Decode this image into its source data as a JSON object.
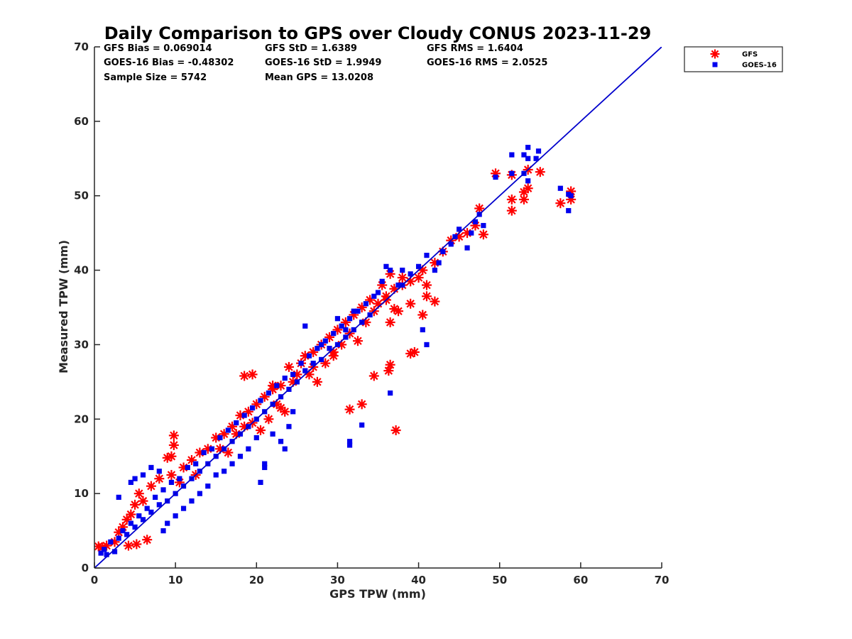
{
  "chart_data": {
    "type": "scatter",
    "title": "Daily Comparison to GPS over Cloudy CONUS 2023-11-29",
    "xlabel": "GPS TPW (mm)",
    "ylabel": "Measured TPW (mm)",
    "xlim": [
      0,
      70
    ],
    "ylim": [
      0,
      70
    ],
    "xticks": [
      "0",
      "10",
      "20",
      "30",
      "40",
      "50",
      "60",
      "70"
    ],
    "yticks": [
      "0",
      "10",
      "20",
      "30",
      "40",
      "50",
      "60",
      "70"
    ],
    "grid": false,
    "legend_position": "outside-top-right",
    "stats": [
      [
        "GFS Bias = 0.069014",
        "GFS StD = 1.6389",
        "GFS RMS = 1.6404"
      ],
      [
        "GOES-16 Bias = -0.48302",
        "GOES-16 StD = 1.9949",
        "GOES-16 RMS = 2.0525"
      ],
      [
        "Sample Size = 5742",
        "Mean GPS = 13.0208",
        ""
      ]
    ],
    "reference_line": {
      "x": [
        0,
        70
      ],
      "y": [
        0,
        70
      ],
      "color": "#0000cc"
    },
    "series": [
      {
        "name": "GFS",
        "marker": "asterisk",
        "color": "#ff0000",
        "points": [
          [
            0.5,
            2.9
          ],
          [
            1.0,
            2.8
          ],
          [
            1.5,
            3.0
          ],
          [
            2.5,
            3.5
          ],
          [
            3.0,
            4.8
          ],
          [
            3.5,
            5.5
          ],
          [
            4.0,
            6.5
          ],
          [
            4.5,
            7.2
          ],
          [
            4.2,
            3.0
          ],
          [
            5.0,
            8.5
          ],
          [
            5.2,
            3.2
          ],
          [
            5.5,
            10.0
          ],
          [
            6.0,
            9.0
          ],
          [
            6.5,
            3.8
          ],
          [
            7.0,
            11.0
          ],
          [
            8.0,
            12.0
          ],
          [
            9.0,
            14.8
          ],
          [
            9.5,
            12.5
          ],
          [
            9.8,
            17.8
          ],
          [
            9.8,
            16.5
          ],
          [
            9.5,
            15.0
          ],
          [
            10.5,
            11.5
          ],
          [
            11.0,
            13.5
          ],
          [
            12.0,
            14.5
          ],
          [
            12.5,
            12.5
          ],
          [
            13.0,
            15.5
          ],
          [
            14.0,
            16.0
          ],
          [
            15.0,
            17.5
          ],
          [
            15.5,
            16.0
          ],
          [
            16.0,
            18.0
          ],
          [
            16.5,
            15.5
          ],
          [
            17.0,
            19.0
          ],
          [
            17.5,
            18.0
          ],
          [
            18.0,
            20.5
          ],
          [
            18.5,
            19.0
          ],
          [
            19.0,
            21.0
          ],
          [
            19.5,
            19.5
          ],
          [
            20.0,
            22.0
          ],
          [
            20.5,
            18.5
          ],
          [
            21.0,
            23.0
          ],
          [
            21.5,
            20.0
          ],
          [
            22.0,
            24.0
          ],
          [
            22.5,
            22.0
          ],
          [
            23.0,
            24.5
          ],
          [
            23.5,
            21.0
          ],
          [
            24.0,
            27.0
          ],
          [
            24.5,
            25.0
          ],
          [
            25.0,
            26.0
          ],
          [
            25.5,
            27.5
          ],
          [
            26.0,
            28.5
          ],
          [
            26.5,
            26.0
          ],
          [
            27.0,
            29.0
          ],
          [
            27.5,
            25.0
          ],
          [
            28.0,
            30.0
          ],
          [
            28.5,
            27.5
          ],
          [
            29.0,
            31.0
          ],
          [
            29.5,
            28.5
          ],
          [
            30.0,
            32.0
          ],
          [
            30.5,
            30.0
          ],
          [
            31.0,
            33.0
          ],
          [
            31.5,
            31.5
          ],
          [
            32.0,
            34.0
          ],
          [
            32.5,
            30.5
          ],
          [
            33.0,
            35.0
          ],
          [
            33.5,
            33.0
          ],
          [
            34.0,
            36.0
          ],
          [
            34.5,
            34.5
          ],
          [
            35.0,
            35.5
          ],
          [
            35.5,
            38.0
          ],
          [
            36.0,
            36.5
          ],
          [
            36.5,
            33.0
          ],
          [
            37.0,
            37.5
          ],
          [
            38.0,
            39.0
          ],
          [
            39.0,
            38.5
          ],
          [
            40.0,
            39.0
          ],
          [
            40.5,
            40.0
          ],
          [
            41.0,
            38.0
          ],
          [
            42.0,
            41.0
          ],
          [
            43.0,
            42.5
          ],
          [
            44.0,
            44.0
          ],
          [
            45.0,
            44.5
          ],
          [
            46.0,
            45.0
          ],
          [
            47.0,
            46.0
          ],
          [
            47.5,
            48.3
          ],
          [
            48.0,
            44.8
          ],
          [
            18.5,
            25.8
          ],
          [
            19.5,
            26.0
          ],
          [
            22.0,
            24.5
          ],
          [
            23.0,
            21.5
          ],
          [
            27.0,
            27.0
          ],
          [
            29.5,
            29.0
          ],
          [
            31.5,
            21.3
          ],
          [
            33.0,
            22.0
          ],
          [
            34.5,
            25.8
          ],
          [
            36.5,
            27.3
          ],
          [
            36.3,
            26.5
          ],
          [
            37.2,
            18.5
          ],
          [
            37.0,
            34.8
          ],
          [
            37.5,
            34.5
          ],
          [
            39.0,
            35.5
          ],
          [
            39.5,
            29.0
          ],
          [
            39.0,
            28.8
          ],
          [
            40.5,
            34.0
          ],
          [
            41.0,
            36.5
          ],
          [
            42.0,
            35.8
          ],
          [
            36.0,
            36.0
          ],
          [
            36.5,
            39.5
          ],
          [
            38.0,
            38.0
          ],
          [
            49.5,
            53.0
          ],
          [
            51.5,
            52.8
          ],
          [
            51.5,
            48.0
          ],
          [
            51.5,
            49.5
          ],
          [
            53.0,
            49.5
          ],
          [
            53.0,
            50.5
          ],
          [
            53.5,
            51.0
          ],
          [
            53.5,
            53.5
          ],
          [
            55.0,
            53.2
          ],
          [
            57.5,
            49.0
          ],
          [
            58.8,
            50.6
          ],
          [
            58.8,
            49.5
          ]
        ]
      },
      {
        "name": "GOES-16",
        "marker": "square",
        "color": "#0000ee",
        "points": [
          [
            0.8,
            2.0
          ],
          [
            1.2,
            2.5
          ],
          [
            1.5,
            1.8
          ],
          [
            2.0,
            3.5
          ],
          [
            2.5,
            2.2
          ],
          [
            3.0,
            4.0
          ],
          [
            3.5,
            5.0
          ],
          [
            4.0,
            4.5
          ],
          [
            4.5,
            6.0
          ],
          [
            5.0,
            5.5
          ],
          [
            5.5,
            7.0
          ],
          [
            6.0,
            6.5
          ],
          [
            6.5,
            8.0
          ],
          [
            7.0,
            7.5
          ],
          [
            7.5,
            9.5
          ],
          [
            8.0,
            8.5
          ],
          [
            8.5,
            10.5
          ],
          [
            9.0,
            9.0
          ],
          [
            9.5,
            11.5
          ],
          [
            10.0,
            10.0
          ],
          [
            10.5,
            12.0
          ],
          [
            11.0,
            11.0
          ],
          [
            11.5,
            13.5
          ],
          [
            12.0,
            12.0
          ],
          [
            12.5,
            14.0
          ],
          [
            13.0,
            13.0
          ],
          [
            13.5,
            15.5
          ],
          [
            14.0,
            14.0
          ],
          [
            14.5,
            16.0
          ],
          [
            15.0,
            15.0
          ],
          [
            15.5,
            17.5
          ],
          [
            16.0,
            16.0
          ],
          [
            16.5,
            18.5
          ],
          [
            17.0,
            17.0
          ],
          [
            17.5,
            19.5
          ],
          [
            18.0,
            18.0
          ],
          [
            18.5,
            20.5
          ],
          [
            19.0,
            19.0
          ],
          [
            19.5,
            21.5
          ],
          [
            20.0,
            20.0
          ],
          [
            20.5,
            22.5
          ],
          [
            21.0,
            21.0
          ],
          [
            21.5,
            23.5
          ],
          [
            22.0,
            22.0
          ],
          [
            22.5,
            24.5
          ],
          [
            23.0,
            23.0
          ],
          [
            23.5,
            25.5
          ],
          [
            24.0,
            24.0
          ],
          [
            24.5,
            26.0
          ],
          [
            25.0,
            25.0
          ],
          [
            25.5,
            27.5
          ],
          [
            26.0,
            26.5
          ],
          [
            26.5,
            28.5
          ],
          [
            27.0,
            27.5
          ],
          [
            27.5,
            29.5
          ],
          [
            28.0,
            28.0
          ],
          [
            28.5,
            30.5
          ],
          [
            29.0,
            29.5
          ],
          [
            29.5,
            31.5
          ],
          [
            30.0,
            30.0
          ],
          [
            30.5,
            32.5
          ],
          [
            31.0,
            31.0
          ],
          [
            31.5,
            33.5
          ],
          [
            32.0,
            32.0
          ],
          [
            32.5,
            34.5
          ],
          [
            33.0,
            33.0
          ],
          [
            33.5,
            35.5
          ],
          [
            34.0,
            34.0
          ],
          [
            34.5,
            36.5
          ],
          [
            35.0,
            37.0
          ],
          [
            35.5,
            38.5
          ],
          [
            36.0,
            40.5
          ],
          [
            36.5,
            40.0
          ],
          [
            37.5,
            38.0
          ],
          [
            38.0,
            40.0
          ],
          [
            39.0,
            39.5
          ],
          [
            40.0,
            40.5
          ],
          [
            41.0,
            42.0
          ],
          [
            42.0,
            40.0
          ],
          [
            42.5,
            41.0
          ],
          [
            43.0,
            42.5
          ],
          [
            44.0,
            43.5
          ],
          [
            44.5,
            44.5
          ],
          [
            45.0,
            45.5
          ],
          [
            46.0,
            43.0
          ],
          [
            46.5,
            45.0
          ],
          [
            47.0,
            46.5
          ],
          [
            47.5,
            47.5
          ],
          [
            48.0,
            46.0
          ],
          [
            3.0,
            9.5
          ],
          [
            4.5,
            11.5
          ],
          [
            5.0,
            12.0
          ],
          [
            6.0,
            12.5
          ],
          [
            7.0,
            13.5
          ],
          [
            8.0,
            13.0
          ],
          [
            8.5,
            5.0
          ],
          [
            9.0,
            6.0
          ],
          [
            10.0,
            7.0
          ],
          [
            11.0,
            8.0
          ],
          [
            12.0,
            9.0
          ],
          [
            13.0,
            10.0
          ],
          [
            14.0,
            11.0
          ],
          [
            15.0,
            12.5
          ],
          [
            16.0,
            13.0
          ],
          [
            17.0,
            14.0
          ],
          [
            18.0,
            15.0
          ],
          [
            19.0,
            16.0
          ],
          [
            20.0,
            17.5
          ],
          [
            21.0,
            14.0
          ],
          [
            22.0,
            18.0
          ],
          [
            23.0,
            17.0
          ],
          [
            24.0,
            19.0
          ],
          [
            24.5,
            21.0
          ],
          [
            26.0,
            32.5
          ],
          [
            28.0,
            30.0
          ],
          [
            30.0,
            33.5
          ],
          [
            31.0,
            32.0
          ],
          [
            32.0,
            34.5
          ],
          [
            33.0,
            33.0
          ],
          [
            31.5,
            16.5
          ],
          [
            31.5,
            17.0
          ],
          [
            33.0,
            19.2
          ],
          [
            36.5,
            23.5
          ],
          [
            38.0,
            38.0
          ],
          [
            40.5,
            32.0
          ],
          [
            41.0,
            30.0
          ],
          [
            20.5,
            11.5
          ],
          [
            21.0,
            13.5
          ],
          [
            23.5,
            16.0
          ],
          [
            49.5,
            52.5
          ],
          [
            51.5,
            55.5
          ],
          [
            51.5,
            53.0
          ],
          [
            53.0,
            53.0
          ],
          [
            53.0,
            55.5
          ],
          [
            53.5,
            56.5
          ],
          [
            53.5,
            55.0
          ],
          [
            53.5,
            52.0
          ],
          [
            54.5,
            55.0
          ],
          [
            54.8,
            56.0
          ],
          [
            57.5,
            51.0
          ],
          [
            58.5,
            48.0
          ],
          [
            58.8,
            50.0
          ],
          [
            58.5,
            50.2
          ]
        ]
      }
    ]
  }
}
